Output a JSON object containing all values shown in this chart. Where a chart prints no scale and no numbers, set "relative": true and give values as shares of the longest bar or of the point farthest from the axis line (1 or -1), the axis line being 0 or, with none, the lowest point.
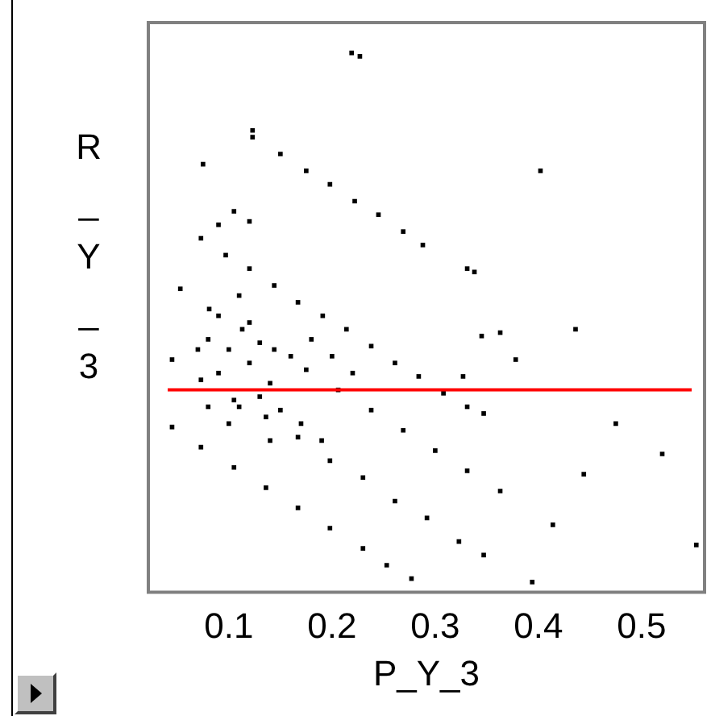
{
  "chart_data": {
    "type": "scatter",
    "xlabel": "P_Y_3",
    "ylabel": "R_Y_3",
    "relative": true,
    "xlim": [
      0.022,
      0.561
    ],
    "xticks": [
      0.1,
      0.2,
      0.3,
      0.4,
      0.5
    ],
    "tick_labels": "x",
    "grid": false,
    "legend": false,
    "marker": "square",
    "ref_lines": [
      {
        "axis": "y",
        "value": 0,
        "color": "#ff0000"
      }
    ],
    "series": [
      {
        "color": "#000000",
        "x": [
          0.219,
          0.227,
          0.402,
          0.436,
          0.378,
          0.475,
          0.52,
          0.444,
          0.414,
          0.553,
          0.394,
          0.363,
          0.331,
          0.338,
          0.347,
          0.345,
          0.327,
          0.075,
          0.123,
          0.105,
          0.12,
          0.09,
          0.08,
          0.07,
          0.123,
          0.15,
          0.175,
          0.198,
          0.222,
          0.245,
          0.269,
          0.288,
          0.073,
          0.097,
          0.12,
          0.144,
          0.167,
          0.191,
          0.214,
          0.238,
          0.261,
          0.284,
          0.308,
          0.331,
          0.053,
          0.081,
          0.113,
          0.144,
          0.175,
          0.206,
          0.238,
          0.269,
          0.3,
          0.331,
          0.363,
          0.045,
          0.073,
          0.105,
          0.136,
          0.167,
          0.198,
          0.23,
          0.261,
          0.292,
          0.323,
          0.347,
          0.045,
          0.073,
          0.105,
          0.136,
          0.167,
          0.198,
          0.23,
          0.253,
          0.277,
          0.08,
          0.09,
          0.1,
          0.11,
          0.12,
          0.13,
          0.1,
          0.14,
          0.15,
          0.12,
          0.09,
          0.16,
          0.17,
          0.11,
          0.13,
          0.18,
          0.19,
          0.14,
          0.2,
          0.22
        ],
        "values": [
          1.0,
          0.99,
          0.65,
          0.18,
          0.09,
          -0.1,
          -0.19,
          -0.25,
          -0.4,
          -0.46,
          -0.57,
          0.17,
          0.36,
          0.35,
          -0.07,
          0.16,
          0.04,
          0.67,
          0.77,
          0.53,
          0.5,
          0.49,
          -0.05,
          0.12,
          0.75,
          0.7,
          0.65,
          0.61,
          0.56,
          0.52,
          0.47,
          0.43,
          0.45,
          0.4,
          0.36,
          0.31,
          0.26,
          0.22,
          0.18,
          0.13,
          0.08,
          0.04,
          -0.01,
          -0.05,
          0.3,
          0.24,
          0.18,
          0.12,
          0.06,
          0.0,
          -0.06,
          -0.12,
          -0.18,
          -0.24,
          -0.3,
          0.09,
          0.03,
          -0.03,
          -0.08,
          -0.14,
          -0.21,
          -0.26,
          -0.33,
          -0.38,
          -0.45,
          -0.49,
          -0.11,
          -0.17,
          -0.23,
          -0.29,
          -0.35,
          -0.41,
          -0.47,
          -0.52,
          -0.56,
          0.15,
          0.05,
          0.12,
          -0.05,
          0.08,
          -0.02,
          -0.1,
          0.02,
          -0.06,
          0.2,
          0.22,
          0.1,
          -0.1,
          0.28,
          0.14,
          0.15,
          -0.15,
          -0.15,
          0.1,
          0.05
        ]
      }
    ]
  }
}
